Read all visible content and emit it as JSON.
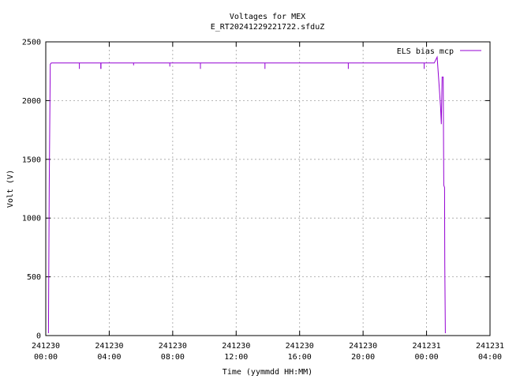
{
  "chart_data": {
    "type": "line",
    "title": "Voltages for MEX",
    "subtitle": "E_RT20241229221722.sfduZ",
    "xlabel": "Time (yymmdd HH:MM)",
    "ylabel": "Volt (V)",
    "xlim": [
      "241230 00:00",
      "241231 04:00"
    ],
    "ylim": [
      0,
      2500
    ],
    "grid": true,
    "legend": "top-right",
    "x_ticks": [
      {
        "date": "241230",
        "time": "00:00"
      },
      {
        "date": "241230",
        "time": "04:00"
      },
      {
        "date": "241230",
        "time": "08:00"
      },
      {
        "date": "241230",
        "time": "12:00"
      },
      {
        "date": "241230",
        "time": "16:00"
      },
      {
        "date": "241230",
        "time": "20:00"
      },
      {
        "date": "241231",
        "time": "00:00"
      },
      {
        "date": "241231",
        "time": "04:00"
      }
    ],
    "y_ticks": [
      "0",
      "500",
      "1000",
      "1500",
      "2000",
      "2500"
    ],
    "series": [
      {
        "name": "ELS bias mcp",
        "color": "#9400d3",
        "x": [
          "241230 00:10",
          "241230 00:13",
          "241230 00:17",
          "241230 00:21",
          "241230 02:07",
          "241230 02:07",
          "241230 02:07",
          "241230 03:28",
          "241230 03:28",
          "241230 03:28",
          "241230 03:29",
          "241230 03:29",
          "241230 03:29",
          "241230 05:32",
          "241230 05:32",
          "241230 05:32",
          "241230 07:49",
          "241230 07:49",
          "241230 07:49",
          "241230 09:45",
          "241230 09:45",
          "241230 09:45",
          "241230 13:49",
          "241230 13:49",
          "241230 13:49",
          "241230 19:04",
          "241230 19:04",
          "241230 19:04",
          "241230 23:51",
          "241230 23:51",
          "241230 23:51",
          "241231 00:29",
          "241231 00:40",
          "241231 00:47",
          "241231 00:53",
          "241231 00:56",
          "241231 00:59",
          "241231 01:03",
          "241231 01:05",
          "241231 01:08",
          "241231 01:09",
          "241231 01:11"
        ],
        "y": [
          20,
          1280,
          2310,
          2320,
          2320,
          2270,
          2320,
          2320,
          2270,
          2320,
          2320,
          2270,
          2320,
          2320,
          2300,
          2320,
          2320,
          2290,
          2320,
          2320,
          2270,
          2320,
          2320,
          2270,
          2320,
          2320,
          2270,
          2320,
          2320,
          2270,
          2320,
          2320,
          2370,
          2150,
          1950,
          1800,
          2200,
          2200,
          1280,
          1260,
          600,
          20
        ]
      }
    ]
  }
}
